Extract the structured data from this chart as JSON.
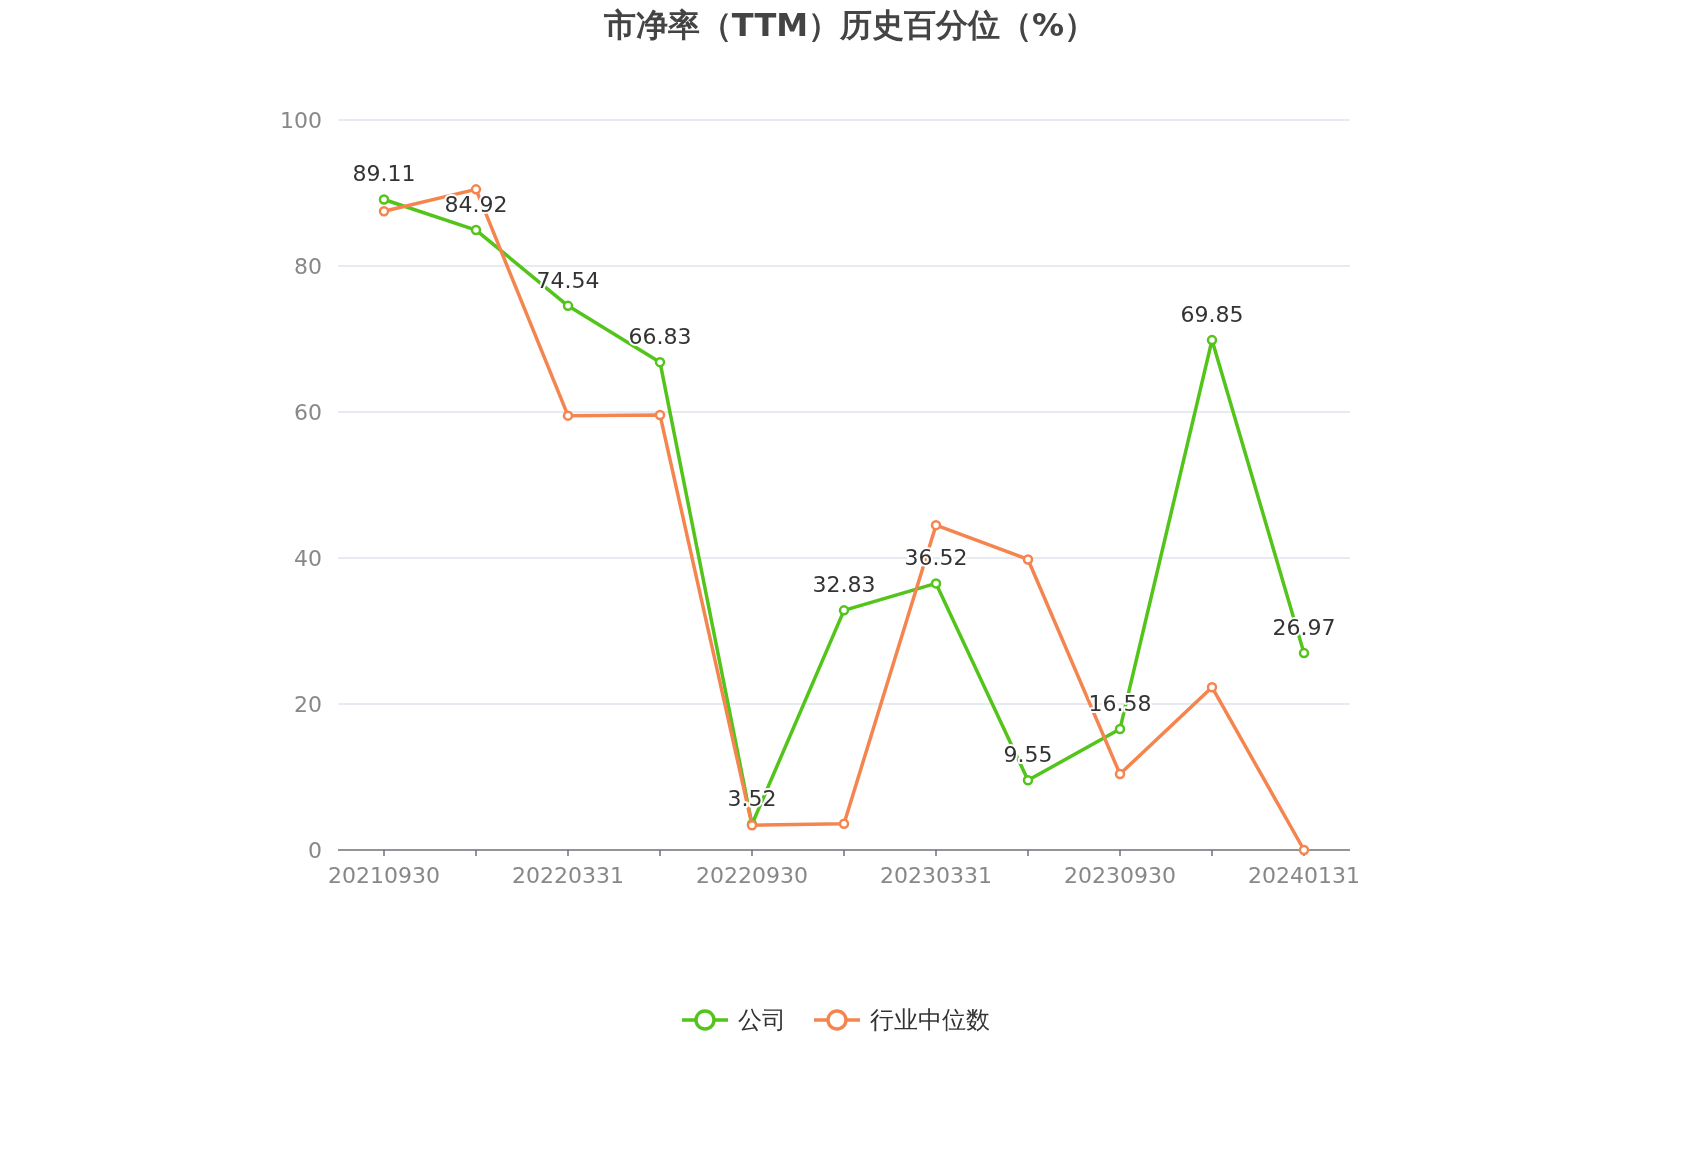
{
  "chart_data": {
    "type": "line",
    "title": "市净率（TTM）历史百分位（%）",
    "categories": [
      "20210930",
      null,
      "20220331",
      null,
      "20220930",
      null,
      "20230331",
      null,
      "20230930",
      null,
      "20240131"
    ],
    "series": [
      {
        "name": "公司",
        "color": "#52c41a",
        "values": [
          89.11,
          84.92,
          74.54,
          66.83,
          3.52,
          32.83,
          36.52,
          9.55,
          16.58,
          69.85,
          26.97
        ],
        "value_labels": [
          "89.11",
          "84.92",
          "74.54",
          "66.83",
          "3.52",
          "32.83",
          "36.52",
          "9.55",
          "16.58",
          "69.85",
          "26.97"
        ]
      },
      {
        "name": "行业中位数",
        "color": "#f5854f",
        "values": [
          87.5,
          90.5,
          59.5,
          59.6,
          3.4,
          3.6,
          44.5,
          39.8,
          10.4,
          22.3,
          0
        ]
      }
    ],
    "ylim": [
      0,
      100
    ],
    "yticks": [
      0,
      20,
      40,
      60,
      80,
      100
    ],
    "grid": "y",
    "legend": "bottom",
    "marker": "circle",
    "line_style": "solid"
  }
}
